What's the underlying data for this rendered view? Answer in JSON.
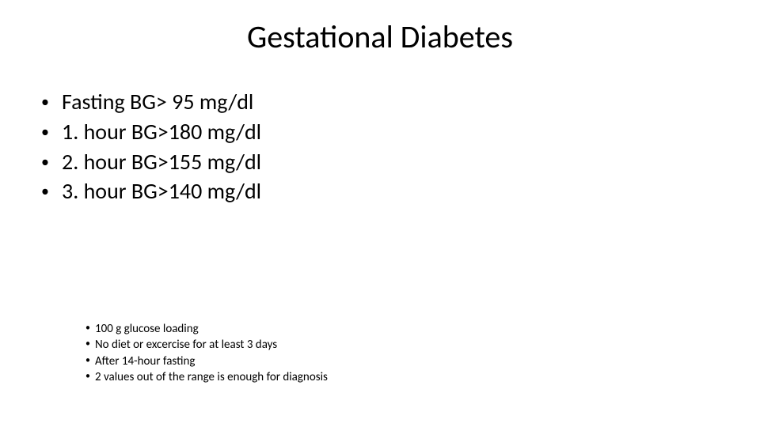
{
  "slide": {
    "title": "Gestational Diabetes",
    "title_fontsize": 40,
    "background_color": "#ffffff",
    "text_color": "#000000",
    "main_bullets": {
      "fontsize": 28,
      "items": [
        "Fasting BG> 95 mg/dl",
        "1. hour BG>180 mg/dl",
        "2. hour BG>155 mg/dl",
        "3. hour BG>140 mg/dl"
      ]
    },
    "sub_bullets": {
      "fontsize": 15,
      "items": [
        "100 g glucose loading",
        "No diet or excercise for at least 3 days",
        "After 14-hour fasting",
        "2 values out of the range is enough for diagnosis"
      ]
    }
  }
}
